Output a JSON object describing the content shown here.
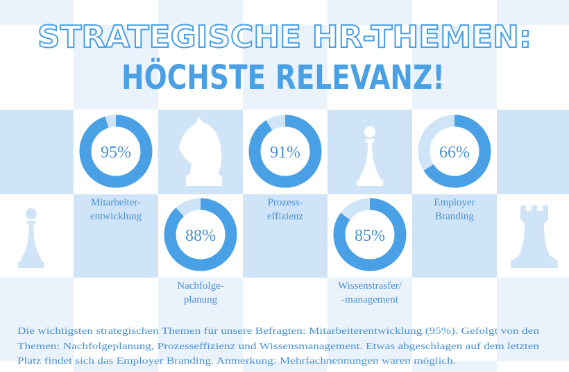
{
  "title": {
    "line1": "STRATEGISCHE HR-THEMEN:",
    "line2": "HÖCHSTE RELEVANZ!"
  },
  "colors": {
    "accent": "#4aa0e4",
    "track": "#cfe4f7",
    "text": "#4a90d2",
    "checker_strong": "#cfe4f7",
    "checker_pale": "#eaf3fc"
  },
  "chart_data": {
    "type": "pie",
    "variant": "donut",
    "unit": "%",
    "items": [
      {
        "label_lines": [
          "Mitarbeiter-",
          "entwicklung"
        ],
        "value": 95,
        "value_label": "95%"
      },
      {
        "label_lines": [
          "Nachfolge-",
          "planung"
        ],
        "value": 88,
        "value_label": "88%"
      },
      {
        "label_lines": [
          "Prozess-",
          "effizienz"
        ],
        "value": 91,
        "value_label": "91%"
      },
      {
        "label_lines": [
          "Wissenstrasfer/",
          "-management"
        ],
        "value": 85,
        "value_label": "85%"
      },
      {
        "label_lines": [
          "Employer",
          "Branding"
        ],
        "value": 66,
        "value_label": "66%"
      }
    ]
  },
  "decorations": [
    "knight-icon",
    "pawn-icon",
    "pawn-icon",
    "rook-icon"
  ],
  "footnote": {
    "lines": [
      "Die wichtigsten strategischen Themen für unsere Befragten: Mitarbeiterentwicklung (95%). Gefolgt von den",
      "Themen: Nachfolgeplanung, Prozesseffizienz und Wissensmanagement. Etwas abgeschlagen auf dem letzten",
      "Platz findet sich das Employer Branding. Anmerkung: Mehrfachnennungen waren möglich."
    ]
  }
}
